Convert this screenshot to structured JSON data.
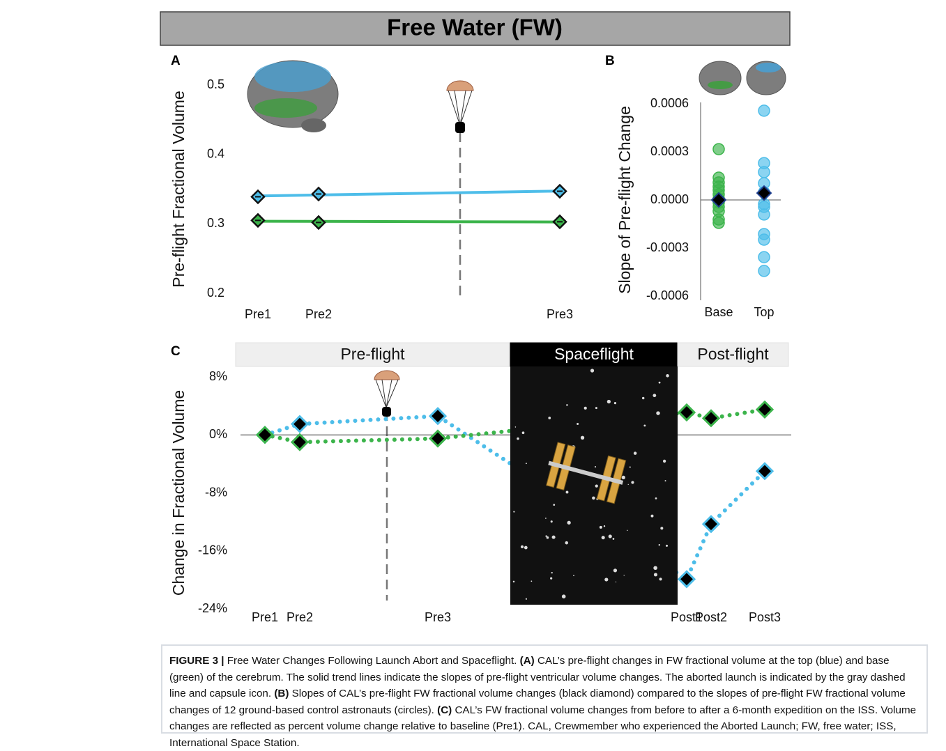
{
  "title": "Free Water (FW)",
  "chart_data": [
    {
      "type": "line",
      "panel": "A",
      "ylabel": "Pre-flight Fractional Volume",
      "categories": [
        "Pre1",
        "Pre2",
        "Pre3"
      ],
      "ylim": [
        0.2,
        0.5
      ],
      "yticks": [
        0.2,
        0.3,
        0.4,
        0.5
      ],
      "trend": true,
      "series": [
        {
          "color": "#4dbde9",
          "values": [
            0.339,
            0.343,
            0.347
          ]
        },
        {
          "color": "#3cb44b",
          "values": [
            0.305,
            0.302,
            0.303
          ]
        }
      ]
    },
    {
      "type": "strip",
      "panel": "B",
      "ylabel": "Slope of Pre-flight Change",
      "ylim": [
        -0.0006,
        0.0006
      ],
      "yticks": [
        -0.0006,
        -0.0003,
        {
          "value": 0,
          "label": "0.0000"
        },
        0.0003,
        0.0006
      ],
      "groups": [
        {
          "name": "Base",
          "color": "#3cb44b",
          "values": [
            0.000317,
            0.000139,
            0.000109,
            8.3e-05,
            6.1e-05,
            3.5e-05,
            9e-06,
            -1.7e-05,
            -4.3e-05,
            -7e-05,
            -0.000122,
            -0.000143
          ],
          "cal": 0
        },
        {
          "name": "Top",
          "color": "#4dbde9",
          "values": [
            0.000557,
            0.00023,
            0.000174,
            0.000104,
            4.8e-05,
            -2.6e-05,
            -4.3e-05,
            -9.1e-05,
            -0.000213,
            -0.000248,
            -0.000357,
            -0.000443
          ],
          "cal": 4.3e-05
        }
      ]
    },
    {
      "type": "line",
      "panel": "C",
      "ylabel": "Change in Fractional Volume",
      "line_style": "dotted",
      "phases": [
        "Pre-flight",
        "Spaceflight",
        "Post-flight"
      ],
      "categories": [
        "Pre1",
        "Pre2",
        "Pre3",
        "Post1",
        "Post2",
        "Post3"
      ],
      "ylim": [
        -24,
        8
      ],
      "yticks": [
        {
          "value": -24,
          "label": "-24%"
        },
        {
          "value": -16,
          "label": "-16%"
        },
        {
          "value": -8,
          "label": "-8%"
        },
        {
          "value": 0,
          "label": "0%"
        },
        {
          "value": 8,
          "label": "8%"
        }
      ],
      "series": [
        {
          "color": "#4dbde9",
          "values": [
            0,
            1.5,
            2.6,
            -19.9,
            -12.3,
            -5.0
          ]
        },
        {
          "color": "#3cb44b",
          "values": [
            0,
            -1.0,
            -0.5,
            3.1,
            2.3,
            3.5
          ]
        }
      ]
    }
  ],
  "caption": [
    "FIGURE 3 |",
    "Free Water Changes Following Launch Abort and Spaceflight.",
    "(A)",
    "CAL’s pre-flight changes in FW fractional volume at the top (blue) and base (green) of the cerebrum. The solid trend lines indicate the slopes of pre-flight ventricular volume changes. The aborted launch is indicated by the gray dashed line and capsule icon.",
    "(B)",
    "Slopes of CAL’s pre-flight FW fractional volume changes (black diamond) compared to the slopes of pre-flight FW fractional volume changes of 12 ground-based control astronauts (circles).",
    "(C)",
    "CAL’s FW fractional volume changes from before to after a 6-month expedition on the ISS. Volume changes are reflected as percent volume change relative to baseline (Pre1). CAL, Crewmember who experienced the Aborted Launch; FW, free water; ISS, International Space Station."
  ]
}
